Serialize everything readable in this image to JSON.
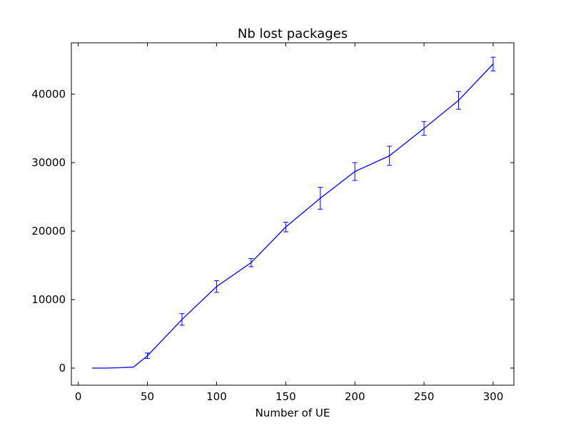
{
  "chart_data": {
    "type": "line",
    "title": "Nb lost packages",
    "xlabel": "Number of UE",
    "ylabel": "",
    "xlim": [
      -5,
      315
    ],
    "ylim": [
      -2500,
      47500
    ],
    "xticks": [
      0,
      50,
      100,
      150,
      200,
      250,
      300
    ],
    "yticks": [
      0,
      10000,
      20000,
      30000,
      40000
    ],
    "grid": false,
    "legend": false,
    "series": [
      {
        "color": "#0000ff",
        "x": [
          10,
          20,
          30,
          40,
          50,
          75,
          100,
          125,
          150,
          175,
          200,
          225,
          250,
          275,
          300
        ],
        "y": [
          0,
          0,
          50,
          150,
          1800,
          7100,
          11900,
          15400,
          20600,
          24800,
          28700,
          31000,
          35000,
          39100,
          44400
        ],
        "yerr": [
          0,
          0,
          0,
          0,
          400,
          850,
          850,
          600,
          700,
          1600,
          1300,
          1400,
          1000,
          1300,
          1000
        ]
      }
    ]
  }
}
